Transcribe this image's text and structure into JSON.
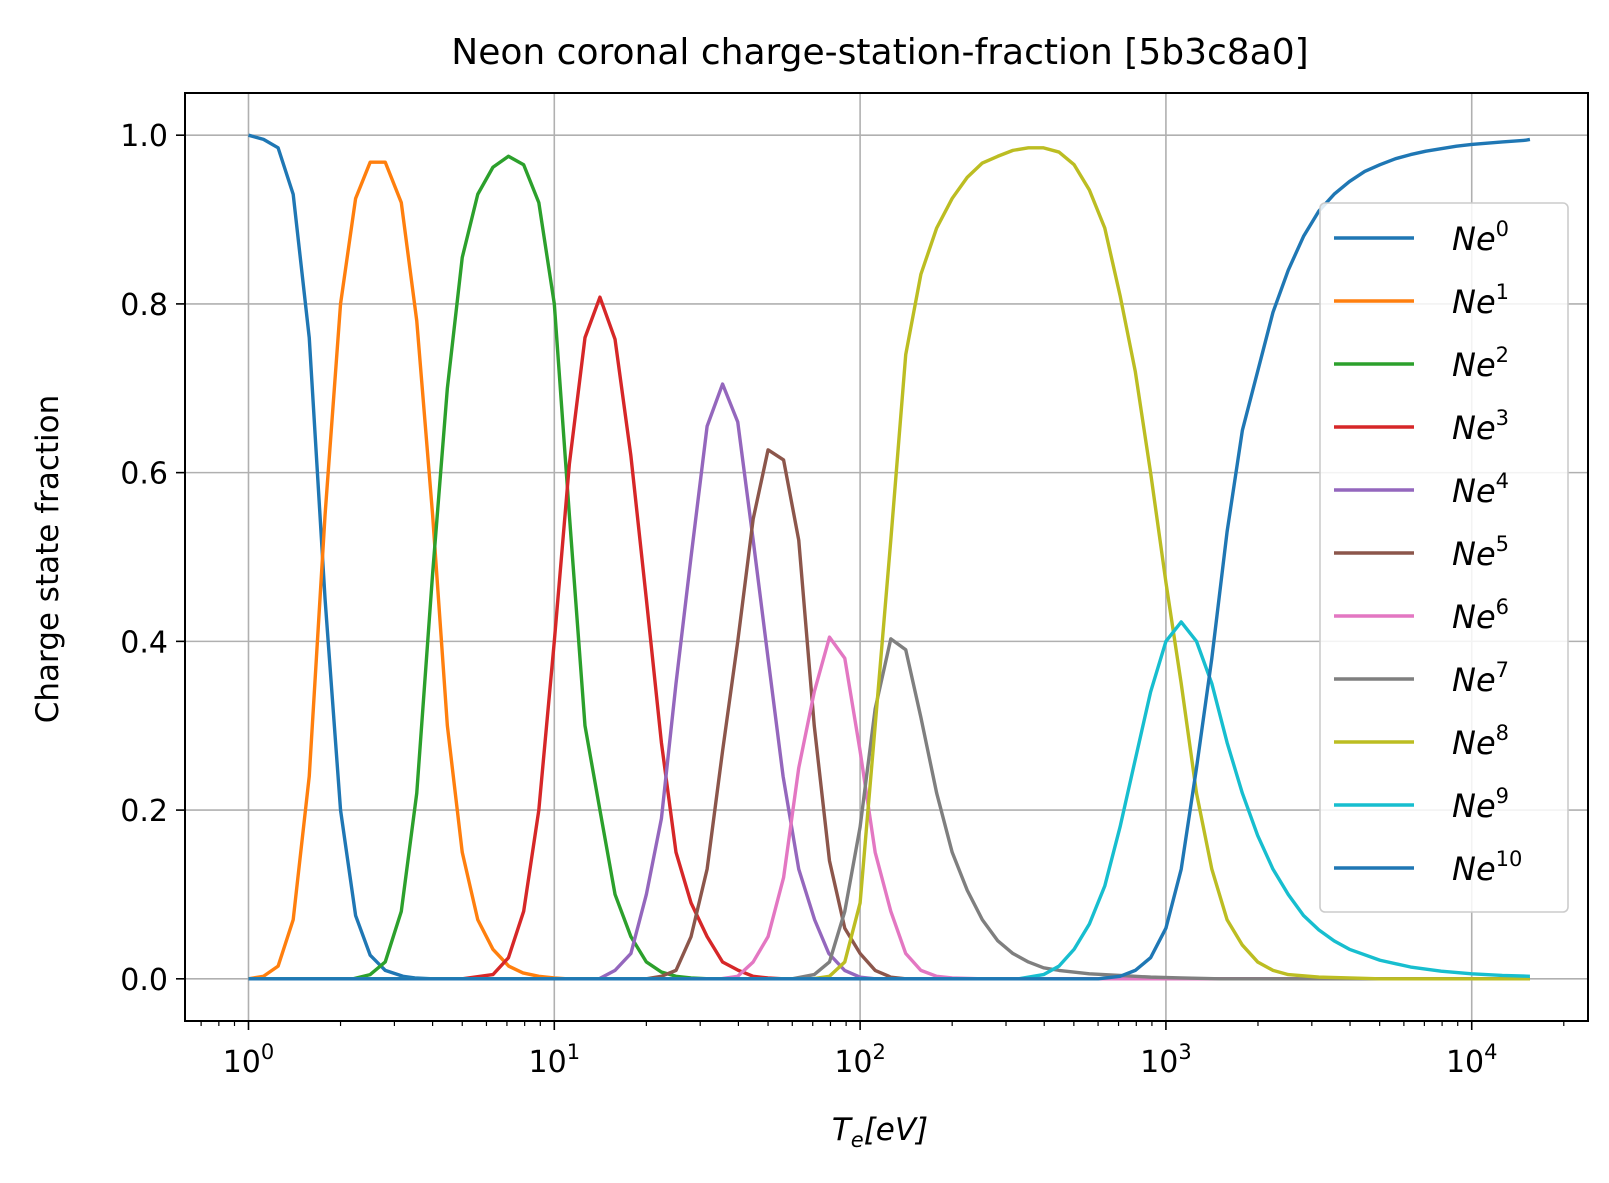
{
  "chart_data": {
    "type": "line",
    "title": "Neon coronal charge-station-fraction [5b3c8a0]",
    "xlabel": {
      "base": "T",
      "sub": "e",
      "rest": "[eV]"
    },
    "ylabel": "Charge state fraction",
    "xscale": "log",
    "xlim": [
      0.62,
      24000
    ],
    "ylim": [
      -0.05,
      1.05
    ],
    "grid": true,
    "legend_position": "right",
    "x_ticks": [
      {
        "value": 1,
        "base": "10",
        "exp": "0"
      },
      {
        "value": 10,
        "base": "10",
        "exp": "1"
      },
      {
        "value": 100,
        "base": "10",
        "exp": "2"
      },
      {
        "value": 1000,
        "base": "10",
        "exp": "3"
      },
      {
        "value": 10000,
        "base": "10",
        "exp": "4"
      }
    ],
    "y_ticks": [
      {
        "value": 0.0,
        "label": "0.0"
      },
      {
        "value": 0.2,
        "label": "0.2"
      },
      {
        "value": 0.4,
        "label": "0.4"
      },
      {
        "value": 0.6,
        "label": "0.6"
      },
      {
        "value": 0.8,
        "label": "0.8"
      },
      {
        "value": 1.0,
        "label": "1.0"
      }
    ],
    "series": [
      {
        "name": "Ne",
        "charge": "0",
        "color": "#1f77b4",
        "points": [
          [
            1,
            1.0
          ],
          [
            1.12,
            0.995
          ],
          [
            1.25,
            0.985
          ],
          [
            1.4,
            0.93
          ],
          [
            1.58,
            0.76
          ],
          [
            1.78,
            0.45
          ],
          [
            2.0,
            0.2
          ],
          [
            2.24,
            0.075
          ],
          [
            2.5,
            0.028
          ],
          [
            2.8,
            0.01
          ],
          [
            3.2,
            0.003
          ],
          [
            3.5,
            0.001
          ],
          [
            4,
            0
          ],
          [
            15500,
            0
          ]
        ]
      },
      {
        "name": "Ne",
        "charge": "1",
        "color": "#ff7f0e",
        "points": [
          [
            1,
            0
          ],
          [
            1.12,
            0.003
          ],
          [
            1.25,
            0.015
          ],
          [
            1.4,
            0.07
          ],
          [
            1.58,
            0.24
          ],
          [
            1.78,
            0.55
          ],
          [
            2.0,
            0.8
          ],
          [
            2.24,
            0.925
          ],
          [
            2.5,
            0.968
          ],
          [
            2.8,
            0.968
          ],
          [
            3.16,
            0.92
          ],
          [
            3.55,
            0.78
          ],
          [
            4.0,
            0.55
          ],
          [
            4.47,
            0.3
          ],
          [
            5.0,
            0.15
          ],
          [
            5.62,
            0.07
          ],
          [
            6.3,
            0.035
          ],
          [
            7.1,
            0.015
          ],
          [
            7.9,
            0.007
          ],
          [
            8.9,
            0.003
          ],
          [
            10,
            0.001
          ],
          [
            11,
            0
          ],
          [
            15500,
            0
          ]
        ]
      },
      {
        "name": "Ne",
        "charge": "2",
        "color": "#2ca02c",
        "points": [
          [
            1,
            0
          ],
          [
            2.2,
            0
          ],
          [
            2.5,
            0.005
          ],
          [
            2.8,
            0.02
          ],
          [
            3.16,
            0.08
          ],
          [
            3.55,
            0.22
          ],
          [
            4.0,
            0.48
          ],
          [
            4.47,
            0.7
          ],
          [
            5.0,
            0.855
          ],
          [
            5.62,
            0.93
          ],
          [
            6.3,
            0.962
          ],
          [
            7.08,
            0.975
          ],
          [
            7.94,
            0.965
          ],
          [
            8.9,
            0.92
          ],
          [
            10,
            0.8
          ],
          [
            11.2,
            0.55
          ],
          [
            12.6,
            0.3
          ],
          [
            14.1,
            0.2
          ],
          [
            15.8,
            0.1
          ],
          [
            17.8,
            0.05
          ],
          [
            20,
            0.02
          ],
          [
            22.4,
            0.008
          ],
          [
            25,
            0.003
          ],
          [
            28,
            0.001
          ],
          [
            32,
            0
          ],
          [
            15500,
            0
          ]
        ]
      },
      {
        "name": "Ne",
        "charge": "3",
        "color": "#d62728",
        "points": [
          [
            1,
            0
          ],
          [
            5.0,
            0
          ],
          [
            6.3,
            0.005
          ],
          [
            7.08,
            0.025
          ],
          [
            7.94,
            0.08
          ],
          [
            8.9,
            0.2
          ],
          [
            10,
            0.4
          ],
          [
            11.2,
            0.61
          ],
          [
            12.6,
            0.76
          ],
          [
            14.1,
            0.808
          ],
          [
            15.8,
            0.758
          ],
          [
            17.8,
            0.62
          ],
          [
            20,
            0.45
          ],
          [
            22.4,
            0.28
          ],
          [
            25,
            0.15
          ],
          [
            28,
            0.09
          ],
          [
            31.6,
            0.05
          ],
          [
            35.5,
            0.02
          ],
          [
            40,
            0.01
          ],
          [
            44.7,
            0.003
          ],
          [
            50,
            0.001
          ],
          [
            56,
            0
          ],
          [
            15500,
            0
          ]
        ]
      },
      {
        "name": "Ne",
        "charge": "4",
        "color": "#9467bd",
        "points": [
          [
            1,
            0
          ],
          [
            14,
            0
          ],
          [
            15.8,
            0.01
          ],
          [
            17.8,
            0.03
          ],
          [
            20,
            0.1
          ],
          [
            22.4,
            0.19
          ],
          [
            25,
            0.35
          ],
          [
            28,
            0.5
          ],
          [
            31.6,
            0.655
          ],
          [
            35.5,
            0.705
          ],
          [
            39.8,
            0.66
          ],
          [
            44.7,
            0.52
          ],
          [
            50,
            0.38
          ],
          [
            56,
            0.24
          ],
          [
            63,
            0.13
          ],
          [
            71,
            0.07
          ],
          [
            79,
            0.03
          ],
          [
            89,
            0.01
          ],
          [
            100,
            0.002
          ],
          [
            112,
            0
          ],
          [
            15500,
            0
          ]
        ]
      },
      {
        "name": "Ne",
        "charge": "5",
        "color": "#8c564b",
        "points": [
          [
            1,
            0
          ],
          [
            20,
            0
          ],
          [
            22.4,
            0.003
          ],
          [
            25,
            0.01
          ],
          [
            28,
            0.05
          ],
          [
            31.6,
            0.13
          ],
          [
            35.5,
            0.27
          ],
          [
            39.8,
            0.4
          ],
          [
            44.7,
            0.545
          ],
          [
            50,
            0.627
          ],
          [
            56.2,
            0.615
          ],
          [
            63,
            0.52
          ],
          [
            70.8,
            0.3
          ],
          [
            79.4,
            0.14
          ],
          [
            89.1,
            0.06
          ],
          [
            100,
            0.03
          ],
          [
            112,
            0.01
          ],
          [
            126,
            0.002
          ],
          [
            141,
            0
          ],
          [
            15500,
            0
          ]
        ]
      },
      {
        "name": "Ne",
        "charge": "6",
        "color": "#e377c2",
        "points": [
          [
            1,
            0
          ],
          [
            35,
            0
          ],
          [
            39.8,
            0.003
          ],
          [
            44.7,
            0.02
          ],
          [
            50,
            0.05
          ],
          [
            56.2,
            0.12
          ],
          [
            63,
            0.25
          ],
          [
            70.8,
            0.34
          ],
          [
            79.4,
            0.405
          ],
          [
            89.1,
            0.38
          ],
          [
            100,
            0.27
          ],
          [
            112,
            0.15
          ],
          [
            126,
            0.08
          ],
          [
            141,
            0.03
          ],
          [
            158,
            0.01
          ],
          [
            178,
            0.003
          ],
          [
            200,
            0.001
          ],
          [
            250,
            0
          ],
          [
            15500,
            0
          ]
        ]
      },
      {
        "name": "Ne",
        "charge": "7",
        "color": "#7f7f7f",
        "points": [
          [
            1,
            0
          ],
          [
            60,
            0
          ],
          [
            70.8,
            0.005
          ],
          [
            79.4,
            0.02
          ],
          [
            89.1,
            0.08
          ],
          [
            100,
            0.18
          ],
          [
            112,
            0.32
          ],
          [
            126,
            0.403
          ],
          [
            141,
            0.39
          ],
          [
            158,
            0.31
          ],
          [
            178,
            0.22
          ],
          [
            200,
            0.15
          ],
          [
            224,
            0.105
          ],
          [
            251,
            0.07
          ],
          [
            282,
            0.045
          ],
          [
            316,
            0.03
          ],
          [
            355,
            0.02
          ],
          [
            398,
            0.013
          ],
          [
            447,
            0.01
          ],
          [
            562,
            0.006
          ],
          [
            708,
            0.004
          ],
          [
            891,
            0.002
          ],
          [
            1122,
            0.001
          ],
          [
            1500,
            0
          ],
          [
            15500,
            0
          ]
        ]
      },
      {
        "name": "Ne",
        "charge": "8",
        "color": "#bcbd22",
        "points": [
          [
            1,
            0
          ],
          [
            70,
            0
          ],
          [
            79.4,
            0.003
          ],
          [
            89.1,
            0.02
          ],
          [
            100,
            0.09
          ],
          [
            112,
            0.3
          ],
          [
            126,
            0.52
          ],
          [
            141,
            0.74
          ],
          [
            158,
            0.835
          ],
          [
            178,
            0.89
          ],
          [
            200,
            0.925
          ],
          [
            224,
            0.95
          ],
          [
            251,
            0.967
          ],
          [
            282,
            0.975
          ],
          [
            316,
            0.982
          ],
          [
            355,
            0.985
          ],
          [
            398,
            0.985
          ],
          [
            447,
            0.98
          ],
          [
            501,
            0.965
          ],
          [
            562,
            0.935
          ],
          [
            631,
            0.89
          ],
          [
            708,
            0.81
          ],
          [
            794,
            0.72
          ],
          [
            891,
            0.6
          ],
          [
            1000,
            0.47
          ],
          [
            1122,
            0.35
          ],
          [
            1259,
            0.22
          ],
          [
            1413,
            0.13
          ],
          [
            1585,
            0.07
          ],
          [
            1778,
            0.04
          ],
          [
            1995,
            0.02
          ],
          [
            2239,
            0.01
          ],
          [
            2512,
            0.005
          ],
          [
            3162,
            0.002
          ],
          [
            3981,
            0.001
          ],
          [
            5000,
            0
          ],
          [
            15500,
            0
          ]
        ]
      },
      {
        "name": "Ne",
        "charge": "9",
        "color": "#17becf",
        "points": [
          [
            1,
            0
          ],
          [
            330,
            0
          ],
          [
            398,
            0.005
          ],
          [
            447,
            0.015
          ],
          [
            501,
            0.035
          ],
          [
            562,
            0.065
          ],
          [
            631,
            0.11
          ],
          [
            708,
            0.18
          ],
          [
            794,
            0.26
          ],
          [
            891,
            0.34
          ],
          [
            1000,
            0.4
          ],
          [
            1122,
            0.423
          ],
          [
            1259,
            0.4
          ],
          [
            1413,
            0.35
          ],
          [
            1585,
            0.28
          ],
          [
            1778,
            0.22
          ],
          [
            1995,
            0.17
          ],
          [
            2239,
            0.13
          ],
          [
            2512,
            0.1
          ],
          [
            2818,
            0.075
          ],
          [
            3162,
            0.058
          ],
          [
            3548,
            0.045
          ],
          [
            3981,
            0.035
          ],
          [
            5012,
            0.022
          ],
          [
            6310,
            0.014
          ],
          [
            7943,
            0.009
          ],
          [
            10000,
            0.006
          ],
          [
            12589,
            0.004
          ],
          [
            15500,
            0.003
          ]
        ]
      },
      {
        "name": "Ne",
        "charge": "10",
        "color": "#1f77b4",
        "points": [
          [
            1,
            0
          ],
          [
            600,
            0
          ],
          [
            708,
            0.003
          ],
          [
            794,
            0.01
          ],
          [
            891,
            0.025
          ],
          [
            1000,
            0.06
          ],
          [
            1122,
            0.13
          ],
          [
            1259,
            0.25
          ],
          [
            1413,
            0.38
          ],
          [
            1585,
            0.53
          ],
          [
            1778,
            0.65
          ],
          [
            1995,
            0.72
          ],
          [
            2239,
            0.79
          ],
          [
            2512,
            0.84
          ],
          [
            2818,
            0.88
          ],
          [
            3162,
            0.91
          ],
          [
            3548,
            0.93
          ],
          [
            3981,
            0.945
          ],
          [
            4467,
            0.957
          ],
          [
            5012,
            0.965
          ],
          [
            5623,
            0.972
          ],
          [
            6310,
            0.977
          ],
          [
            7079,
            0.981
          ],
          [
            7943,
            0.984
          ],
          [
            8913,
            0.987
          ],
          [
            10000,
            0.989
          ],
          [
            12589,
            0.992
          ],
          [
            15000,
            0.994
          ],
          [
            15500,
            0.995
          ]
        ]
      }
    ]
  }
}
